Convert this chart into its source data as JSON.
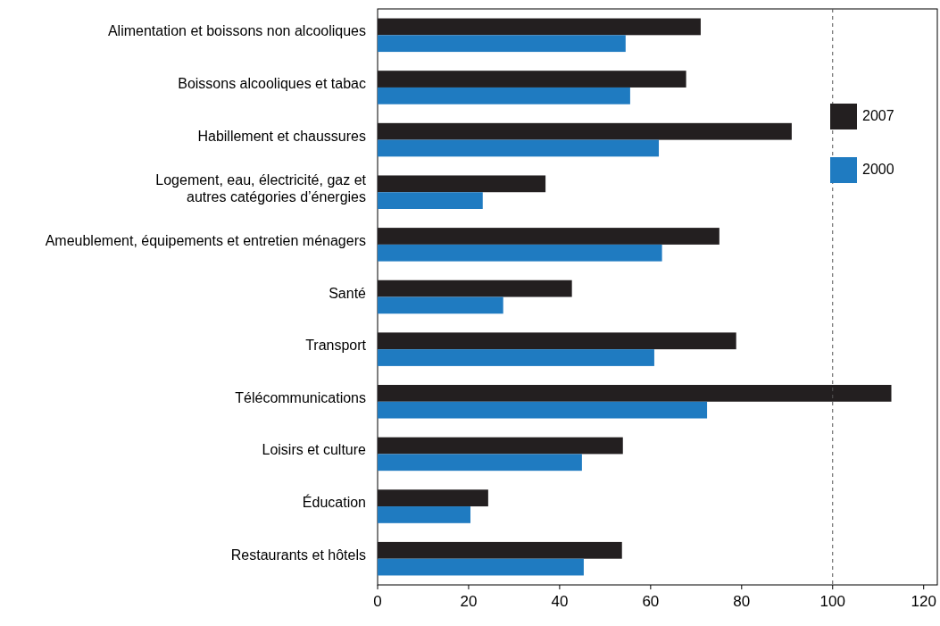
{
  "chart_data": {
    "type": "bar",
    "orientation": "horizontal",
    "categories": [
      "Alimentation et boissons non alcooliques",
      "Boissons alcooliques et tabac",
      "Habillement et chaussures",
      "Logement, eau, électricité, gaz et\nautres catégories d’énergies",
      "Ameublement, équipements et entretien ménagers",
      "Santé",
      "Transport",
      "Télécommunications",
      "Loisirs et culture",
      "Éducation",
      "Restaurants et hôtels"
    ],
    "series": [
      {
        "name": "2007",
        "color": "#231f20",
        "values": [
          71.0,
          67.8,
          91.0,
          36.9,
          75.1,
          42.7,
          78.8,
          112.9,
          53.9,
          24.3,
          53.7
        ]
      },
      {
        "name": "2000",
        "color": "#1f7bc1",
        "values": [
          54.5,
          55.5,
          61.8,
          23.1,
          62.5,
          27.6,
          60.8,
          72.4,
          44.9,
          20.4,
          45.3
        ]
      }
    ],
    "xlim": [
      0,
      123
    ],
    "xticks": [
      0,
      20,
      40,
      60,
      80,
      100,
      120
    ],
    "ref_lines": [
      {
        "axis": "x",
        "value": 100,
        "line_style": "dashed",
        "color": "#555555"
      }
    ],
    "legend": "top right",
    "grid": false
  }
}
